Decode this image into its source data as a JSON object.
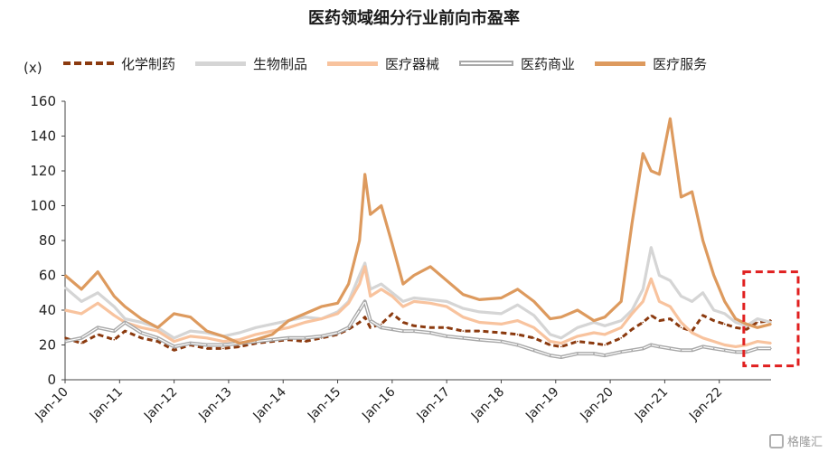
{
  "chart_data": {
    "type": "line",
    "title": "医药领域细分行业前向市盈率",
    "ylabel": "(x)",
    "xlabel": "",
    "ylim": [
      0,
      160
    ],
    "yticks": [
      "0",
      "20",
      "40",
      "60",
      "80",
      "100",
      "120",
      "140",
      "160"
    ],
    "xlim": [
      2010.0,
      2022.95
    ],
    "xticks": [
      "Jan-10",
      "Jan-11",
      "Jan-12",
      "Jan-13",
      "Jan-14",
      "Jan-15",
      "Jan-16",
      "Jan-17",
      "Jan-18",
      "Jan-19",
      "Jan-20",
      "Jan-21",
      "Jan-22"
    ],
    "grid": false,
    "legend_position": "top",
    "highlight_box": {
      "x": [
        2022.45,
        2022.95
      ],
      "y": [
        8,
        62
      ],
      "color": "#e02020",
      "style": "dashed"
    },
    "series": [
      {
        "name": "化学制药",
        "color": "#8b3a0f",
        "dash": "dashed",
        "points": [
          [
            2010.0,
            24
          ],
          [
            2010.3,
            21
          ],
          [
            2010.6,
            26
          ],
          [
            2010.9,
            23
          ],
          [
            2011.1,
            28
          ],
          [
            2011.4,
            24
          ],
          [
            2011.7,
            22
          ],
          [
            2012.0,
            17
          ],
          [
            2012.3,
            20
          ],
          [
            2012.6,
            18
          ],
          [
            2012.9,
            18
          ],
          [
            2013.2,
            19
          ],
          [
            2013.5,
            21
          ],
          [
            2013.8,
            22
          ],
          [
            2014.1,
            23
          ],
          [
            2014.4,
            22
          ],
          [
            2014.7,
            24
          ],
          [
            2015.0,
            26
          ],
          [
            2015.2,
            29
          ],
          [
            2015.4,
            33
          ],
          [
            2015.5,
            36
          ],
          [
            2015.6,
            30
          ],
          [
            2015.8,
            32
          ],
          [
            2016.0,
            38
          ],
          [
            2016.2,
            33
          ],
          [
            2016.4,
            31
          ],
          [
            2016.7,
            30
          ],
          [
            2017.0,
            30
          ],
          [
            2017.3,
            28
          ],
          [
            2017.6,
            28
          ],
          [
            2018.0,
            27
          ],
          [
            2018.3,
            26
          ],
          [
            2018.6,
            24
          ],
          [
            2018.9,
            20
          ],
          [
            2019.1,
            19
          ],
          [
            2019.4,
            22
          ],
          [
            2019.7,
            21
          ],
          [
            2019.9,
            20
          ],
          [
            2020.2,
            24
          ],
          [
            2020.4,
            29
          ],
          [
            2020.6,
            33
          ],
          [
            2020.75,
            37
          ],
          [
            2020.9,
            34
          ],
          [
            2021.1,
            35
          ],
          [
            2021.3,
            30
          ],
          [
            2021.5,
            28
          ],
          [
            2021.7,
            37
          ],
          [
            2021.9,
            34
          ],
          [
            2022.1,
            32
          ],
          [
            2022.3,
            30
          ],
          [
            2022.5,
            29
          ],
          [
            2022.7,
            33
          ],
          [
            2022.95,
            34
          ]
        ]
      },
      {
        "name": "生物制品",
        "color": "#d5d5d5",
        "dash": "solid",
        "points": [
          [
            2010.0,
            53
          ],
          [
            2010.3,
            45
          ],
          [
            2010.6,
            50
          ],
          [
            2010.9,
            42
          ],
          [
            2011.1,
            35
          ],
          [
            2011.4,
            33
          ],
          [
            2011.7,
            30
          ],
          [
            2012.0,
            24
          ],
          [
            2012.3,
            28
          ],
          [
            2012.6,
            27
          ],
          [
            2012.9,
            25
          ],
          [
            2013.2,
            27
          ],
          [
            2013.5,
            30
          ],
          [
            2013.8,
            32
          ],
          [
            2014.1,
            34
          ],
          [
            2014.4,
            36
          ],
          [
            2014.7,
            35
          ],
          [
            2015.0,
            39
          ],
          [
            2015.2,
            45
          ],
          [
            2015.4,
            60
          ],
          [
            2015.5,
            67
          ],
          [
            2015.6,
            52
          ],
          [
            2015.8,
            55
          ],
          [
            2016.0,
            50
          ],
          [
            2016.2,
            45
          ],
          [
            2016.4,
            47
          ],
          [
            2016.7,
            46
          ],
          [
            2017.0,
            45
          ],
          [
            2017.3,
            41
          ],
          [
            2017.6,
            39
          ],
          [
            2018.0,
            38
          ],
          [
            2018.3,
            43
          ],
          [
            2018.6,
            37
          ],
          [
            2018.9,
            26
          ],
          [
            2019.1,
            24
          ],
          [
            2019.4,
            30
          ],
          [
            2019.7,
            33
          ],
          [
            2019.9,
            31
          ],
          [
            2020.2,
            34
          ],
          [
            2020.4,
            40
          ],
          [
            2020.6,
            52
          ],
          [
            2020.75,
            76
          ],
          [
            2020.9,
            60
          ],
          [
            2021.1,
            57
          ],
          [
            2021.3,
            48
          ],
          [
            2021.5,
            45
          ],
          [
            2021.7,
            50
          ],
          [
            2021.9,
            40
          ],
          [
            2022.1,
            38
          ],
          [
            2022.3,
            33
          ],
          [
            2022.5,
            31
          ],
          [
            2022.7,
            35
          ],
          [
            2022.95,
            33
          ]
        ]
      },
      {
        "name": "医疗器械",
        "color": "#f8c39e",
        "dash": "solid",
        "points": [
          [
            2010.0,
            40
          ],
          [
            2010.3,
            38
          ],
          [
            2010.6,
            44
          ],
          [
            2010.9,
            37
          ],
          [
            2011.1,
            33
          ],
          [
            2011.4,
            30
          ],
          [
            2011.7,
            28
          ],
          [
            2012.0,
            22
          ],
          [
            2012.3,
            25
          ],
          [
            2012.6,
            24
          ],
          [
            2012.9,
            22
          ],
          [
            2013.2,
            23
          ],
          [
            2013.5,
            26
          ],
          [
            2013.8,
            28
          ],
          [
            2014.1,
            30
          ],
          [
            2014.4,
            33
          ],
          [
            2014.7,
            35
          ],
          [
            2015.0,
            38
          ],
          [
            2015.2,
            44
          ],
          [
            2015.4,
            55
          ],
          [
            2015.5,
            65
          ],
          [
            2015.6,
            48
          ],
          [
            2015.8,
            52
          ],
          [
            2016.0,
            48
          ],
          [
            2016.2,
            42
          ],
          [
            2016.4,
            45
          ],
          [
            2016.7,
            44
          ],
          [
            2017.0,
            42
          ],
          [
            2017.3,
            36
          ],
          [
            2017.6,
            33
          ],
          [
            2018.0,
            32
          ],
          [
            2018.3,
            34
          ],
          [
            2018.6,
            30
          ],
          [
            2018.9,
            22
          ],
          [
            2019.1,
            21
          ],
          [
            2019.4,
            25
          ],
          [
            2019.7,
            27
          ],
          [
            2019.9,
            26
          ],
          [
            2020.2,
            30
          ],
          [
            2020.4,
            38
          ],
          [
            2020.6,
            45
          ],
          [
            2020.75,
            58
          ],
          [
            2020.9,
            45
          ],
          [
            2021.1,
            42
          ],
          [
            2021.3,
            33
          ],
          [
            2021.5,
            27
          ],
          [
            2021.7,
            24
          ],
          [
            2021.9,
            22
          ],
          [
            2022.1,
            20
          ],
          [
            2022.3,
            19
          ],
          [
            2022.5,
            20
          ],
          [
            2022.7,
            22
          ],
          [
            2022.95,
            21
          ]
        ]
      },
      {
        "name": "医药商业",
        "color": "#a8a8a8",
        "dash": "double",
        "points": [
          [
            2010.0,
            22
          ],
          [
            2010.3,
            24
          ],
          [
            2010.6,
            30
          ],
          [
            2010.9,
            28
          ],
          [
            2011.1,
            33
          ],
          [
            2011.4,
            27
          ],
          [
            2011.7,
            24
          ],
          [
            2012.0,
            19
          ],
          [
            2012.3,
            21
          ],
          [
            2012.6,
            20
          ],
          [
            2012.9,
            20
          ],
          [
            2013.2,
            21
          ],
          [
            2013.5,
            22
          ],
          [
            2013.8,
            23
          ],
          [
            2014.1,
            24
          ],
          [
            2014.4,
            24
          ],
          [
            2014.7,
            25
          ],
          [
            2015.0,
            27
          ],
          [
            2015.2,
            30
          ],
          [
            2015.4,
            40
          ],
          [
            2015.5,
            45
          ],
          [
            2015.6,
            34
          ],
          [
            2015.8,
            30
          ],
          [
            2016.0,
            29
          ],
          [
            2016.2,
            28
          ],
          [
            2016.4,
            28
          ],
          [
            2016.7,
            27
          ],
          [
            2017.0,
            25
          ],
          [
            2017.3,
            24
          ],
          [
            2017.6,
            23
          ],
          [
            2018.0,
            22
          ],
          [
            2018.3,
            20
          ],
          [
            2018.6,
            17
          ],
          [
            2018.9,
            14
          ],
          [
            2019.1,
            13
          ],
          [
            2019.4,
            15
          ],
          [
            2019.7,
            15
          ],
          [
            2019.9,
            14
          ],
          [
            2020.2,
            16
          ],
          [
            2020.4,
            17
          ],
          [
            2020.6,
            18
          ],
          [
            2020.75,
            20
          ],
          [
            2020.9,
            19
          ],
          [
            2021.1,
            18
          ],
          [
            2021.3,
            17
          ],
          [
            2021.5,
            17
          ],
          [
            2021.7,
            19
          ],
          [
            2021.9,
            18
          ],
          [
            2022.1,
            17
          ],
          [
            2022.3,
            16
          ],
          [
            2022.5,
            16
          ],
          [
            2022.7,
            18
          ],
          [
            2022.95,
            18
          ]
        ]
      },
      {
        "name": "医疗服务",
        "color": "#dd9a5e",
        "dash": "solid",
        "points": [
          [
            2010.0,
            60
          ],
          [
            2010.3,
            52
          ],
          [
            2010.6,
            62
          ],
          [
            2010.9,
            48
          ],
          [
            2011.1,
            42
          ],
          [
            2011.4,
            35
          ],
          [
            2011.7,
            30
          ],
          [
            2012.0,
            38
          ],
          [
            2012.3,
            36
          ],
          [
            2012.6,
            28
          ],
          [
            2012.9,
            25
          ],
          [
            2013.2,
            21
          ],
          [
            2013.5,
            23
          ],
          [
            2013.8,
            26
          ],
          [
            2014.1,
            34
          ],
          [
            2014.4,
            38
          ],
          [
            2014.7,
            42
          ],
          [
            2015.0,
            44
          ],
          [
            2015.2,
            55
          ],
          [
            2015.4,
            80
          ],
          [
            2015.5,
            118
          ],
          [
            2015.6,
            95
          ],
          [
            2015.8,
            100
          ],
          [
            2016.0,
            78
          ],
          [
            2016.2,
            55
          ],
          [
            2016.4,
            60
          ],
          [
            2016.7,
            65
          ],
          [
            2017.0,
            57
          ],
          [
            2017.3,
            49
          ],
          [
            2017.6,
            46
          ],
          [
            2018.0,
            47
          ],
          [
            2018.3,
            52
          ],
          [
            2018.6,
            45
          ],
          [
            2018.9,
            35
          ],
          [
            2019.1,
            36
          ],
          [
            2019.4,
            40
          ],
          [
            2019.7,
            34
          ],
          [
            2019.9,
            36
          ],
          [
            2020.2,
            45
          ],
          [
            2020.4,
            90
          ],
          [
            2020.6,
            130
          ],
          [
            2020.75,
            120
          ],
          [
            2020.9,
            118
          ],
          [
            2021.1,
            150
          ],
          [
            2021.3,
            105
          ],
          [
            2021.5,
            108
          ],
          [
            2021.7,
            80
          ],
          [
            2021.9,
            60
          ],
          [
            2022.1,
            45
          ],
          [
            2022.3,
            35
          ],
          [
            2022.5,
            32
          ],
          [
            2022.7,
            30
          ],
          [
            2022.95,
            32
          ]
        ]
      }
    ]
  },
  "watermark": {
    "text": "格隆汇"
  }
}
